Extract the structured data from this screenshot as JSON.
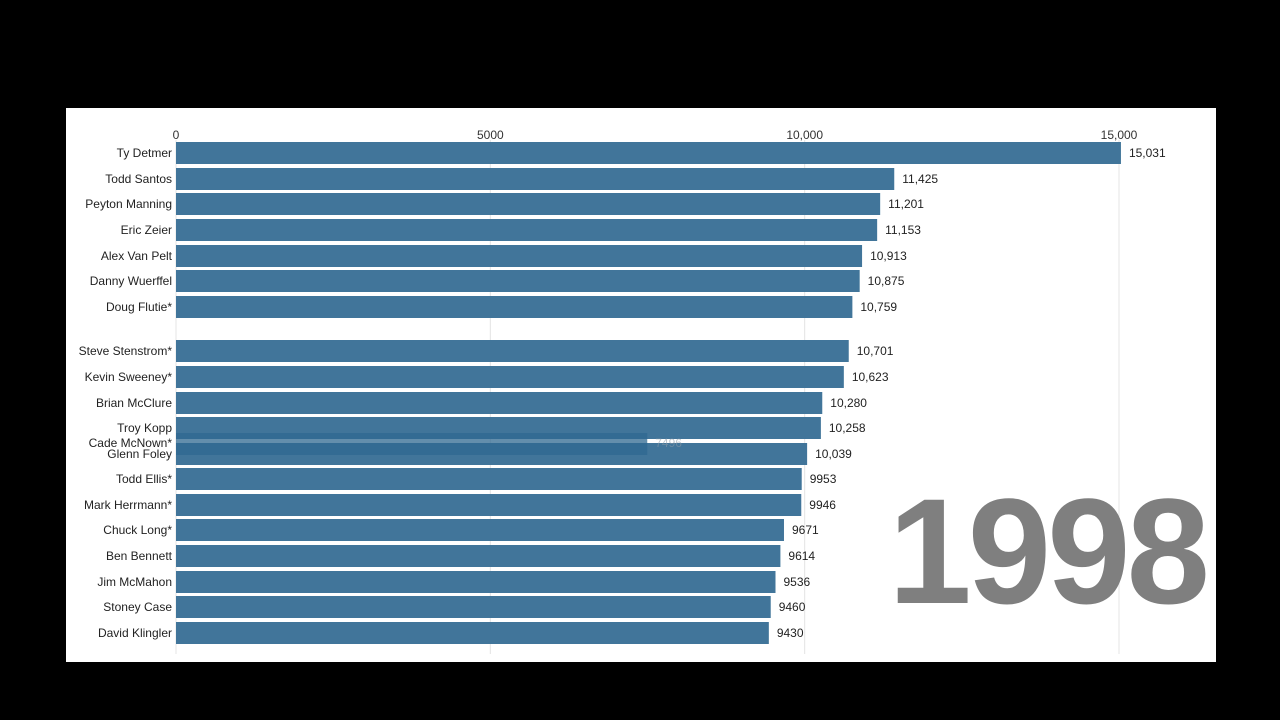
{
  "chart_data": {
    "type": "bar",
    "orientation": "horizontal",
    "xlim": [
      0,
      15000
    ],
    "ticks": [
      {
        "value": 0,
        "label": "0"
      },
      {
        "value": 5000,
        "label": "5000"
      },
      {
        "value": 10000,
        "label": "10,000"
      },
      {
        "value": 15000,
        "label": "15,000"
      }
    ],
    "grid": true,
    "bar_color": "#41759a",
    "categories": [
      "Ty Detmer",
      "Todd Santos",
      "Peyton Manning",
      "Eric Zeier",
      "Alex Van Pelt",
      "Danny Wuerffel",
      "Doug Flutie*",
      "Steve Stenstrom*",
      "Kevin Sweeney*",
      "Brian McClure",
      "Troy Kopp",
      "Glenn Foley",
      "Todd Ellis*",
      "Mark Herrmann*",
      "Chuck Long*",
      "Ben Bennett",
      "Jim McMahon",
      "Stoney Case",
      "David Klingler"
    ],
    "values": [
      15031,
      11425,
      11201,
      11153,
      10913,
      10875,
      10759,
      10701,
      10623,
      10280,
      10258,
      10039,
      9953,
      9946,
      9671,
      9614,
      9536,
      9460,
      9430
    ],
    "value_labels": [
      "15,031",
      "11,425",
      "11,201",
      "11,153",
      "10,913",
      "10,875",
      "10,759",
      "10,701",
      "10,623",
      "10,280",
      "10,258",
      "10,039",
      "9953",
      "9946",
      "9671",
      "9614",
      "9536",
      "9460",
      "9430"
    ],
    "transition_bar": {
      "name": "Cade McNown*",
      "value": 7496,
      "label": "7496"
    },
    "year": "1998"
  }
}
